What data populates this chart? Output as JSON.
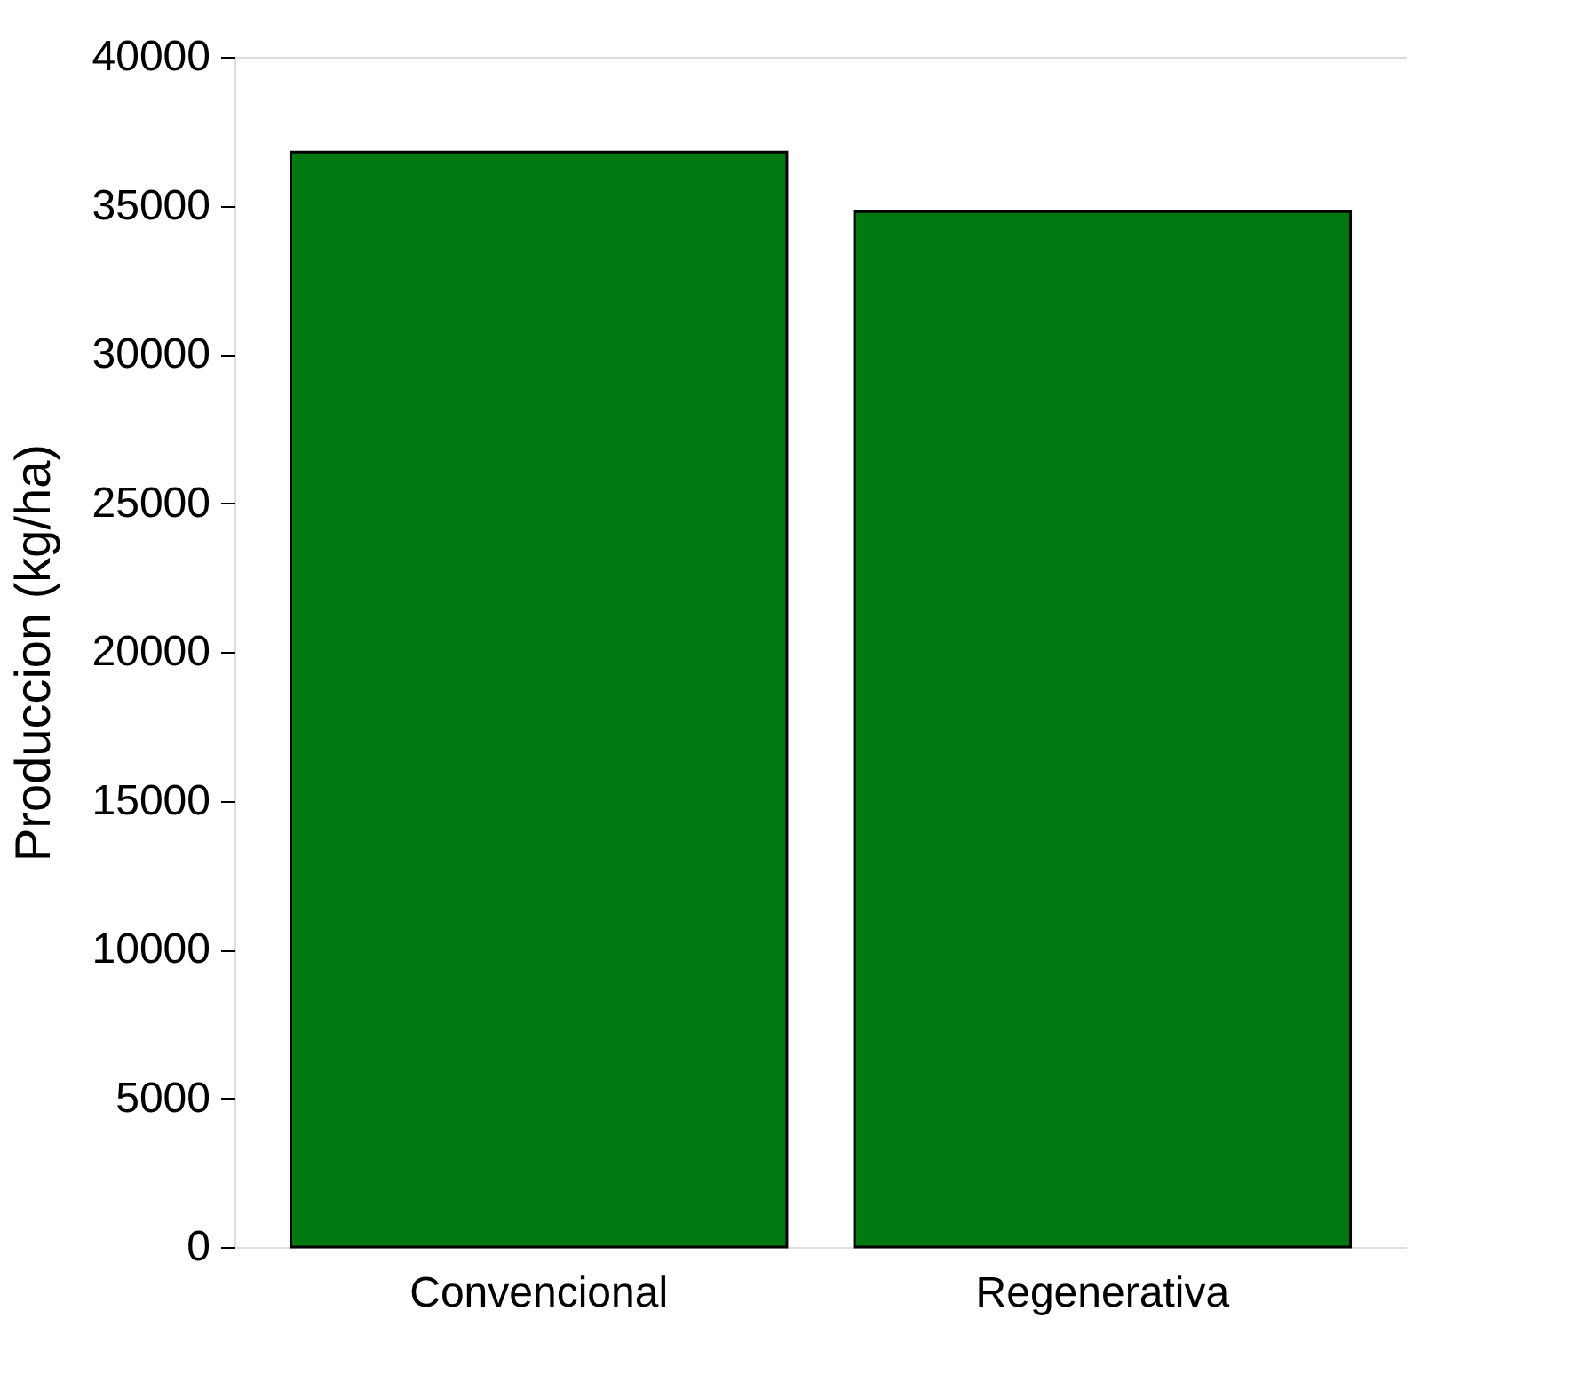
{
  "chart_data": {
    "type": "bar",
    "ylabel": "Produccion (kg/ha)",
    "categories": [
      "Convencional",
      "Regenerativa"
    ],
    "values": [
      36800,
      34800
    ],
    "color": "#007a10",
    "ylim": [
      0,
      40000
    ],
    "yticks": [
      0,
      5000,
      10000,
      15000,
      20000,
      25000,
      30000,
      35000,
      40000
    ],
    "grid": false
  }
}
